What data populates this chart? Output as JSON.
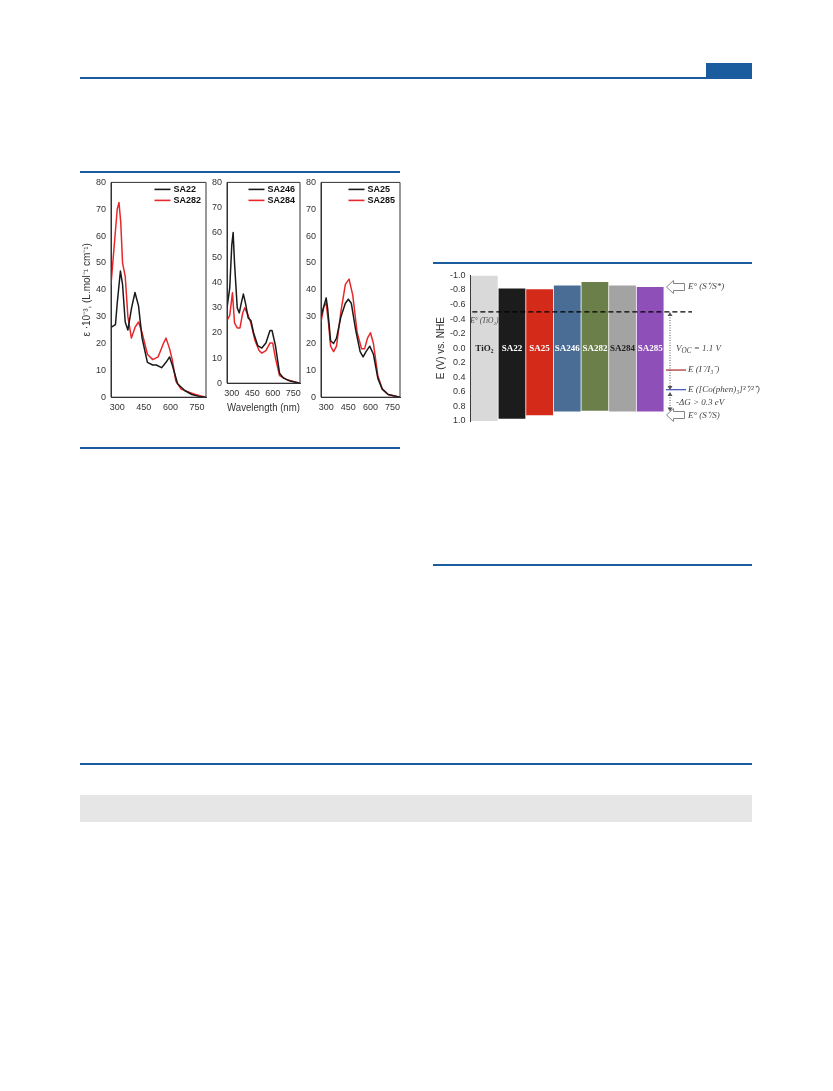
{
  "chart_data": [
    {
      "type": "line",
      "ylabel": "ε ·10⁻³, (L.mol⁻¹ cm⁻¹)",
      "xlim": [
        265,
        800
      ],
      "xticks": [
        300,
        450,
        600,
        750
      ],
      "ylim": [
        0,
        80
      ],
      "yticks": [
        0,
        10,
        20,
        30,
        40,
        50,
        60,
        70,
        80
      ],
      "legend": "top right",
      "marker": "none",
      "line_style": "solid",
      "series": [
        {
          "name": "SA22",
          "color": "#1a1a1a",
          "x": [
            265,
            290,
            300,
            318,
            330,
            345,
            360,
            380,
            400,
            420,
            440,
            470,
            500,
            520,
            550,
            575,
            595,
            610,
            640,
            680,
            720,
            760,
            800
          ],
          "values": [
            26,
            27,
            35,
            47,
            42,
            28,
            25,
            33,
            39,
            34,
            22,
            13,
            12,
            12,
            11,
            13,
            15,
            12,
            5,
            2.5,
            1,
            0.3,
            0
          ]
        },
        {
          "name": "SA282",
          "color": "#e8272b",
          "x": [
            265,
            285,
            300,
            310,
            320,
            330,
            345,
            360,
            380,
            400,
            420,
            440,
            470,
            500,
            530,
            560,
            575,
            595,
            610,
            630,
            660,
            700,
            740,
            800
          ],
          "values": [
            42,
            58,
            70,
            72.5,
            65,
            50,
            45,
            30,
            22,
            26,
            28,
            24,
            16,
            14,
            15,
            20,
            22,
            18,
            14,
            6,
            3,
            2,
            1,
            0
          ]
        }
      ]
    },
    {
      "type": "line",
      "xlabel": "Wavelength (nm)",
      "xlim": [
        265,
        800
      ],
      "xticks": [
        300,
        450,
        600,
        750
      ],
      "ylim": [
        0,
        80
      ],
      "yticks": [
        0,
        10,
        20,
        30,
        40,
        50,
        60,
        70,
        80
      ],
      "legend": "top right",
      "marker": "none",
      "line_style": "solid",
      "series": [
        {
          "name": "SA246",
          "color": "#1a1a1a",
          "x": [
            265,
            285,
            300,
            310,
            320,
            340,
            355,
            370,
            385,
            400,
            420,
            440,
            460,
            490,
            520,
            550,
            580,
            595,
            620,
            650,
            680,
            720,
            800
          ],
          "values": [
            30,
            38,
            55,
            60,
            48,
            30,
            28,
            32,
            35.5,
            32,
            26,
            25,
            20,
            15,
            14,
            16,
            21,
            21,
            15,
            4,
            2,
            1,
            0
          ]
        },
        {
          "name": "SA284",
          "color": "#e8272b",
          "x": [
            265,
            285,
            305,
            320,
            340,
            360,
            380,
            395,
            420,
            440,
            470,
            500,
            520,
            550,
            580,
            600,
            620,
            650,
            700,
            800
          ],
          "values": [
            25,
            27,
            36,
            24,
            22,
            22,
            28,
            30,
            27,
            24,
            17,
            13,
            12,
            13,
            16,
            16,
            10,
            3,
            1.5,
            0
          ]
        }
      ]
    },
    {
      "type": "line",
      "xlim": [
        265,
        800
      ],
      "xticks": [
        300,
        450,
        600,
        750
      ],
      "ylim": [
        0,
        80
      ],
      "yticks": [
        0,
        10,
        20,
        30,
        40,
        50,
        60,
        70,
        80
      ],
      "legend": "top right",
      "marker": "none",
      "line_style": "solid",
      "series": [
        {
          "name": "SA25",
          "color": "#1a1a1a",
          "x": [
            265,
            285,
            300,
            310,
            330,
            350,
            370,
            400,
            430,
            450,
            470,
            500,
            530,
            550,
            570,
            595,
            620,
            650,
            680,
            720,
            800
          ],
          "values": [
            30,
            34,
            37,
            33,
            21,
            20,
            22,
            30,
            35,
            36.5,
            35,
            25,
            17,
            15,
            17,
            19,
            16,
            7,
            3,
            1,
            0
          ]
        },
        {
          "name": "SA285",
          "color": "#e8272b",
          "x": [
            265,
            285,
            300,
            315,
            330,
            350,
            370,
            400,
            430,
            455,
            480,
            510,
            540,
            560,
            580,
            600,
            620,
            650,
            680,
            720,
            800
          ],
          "values": [
            28,
            34,
            35,
            28,
            19,
            17,
            19,
            32,
            42,
            44,
            38,
            24,
            18,
            18,
            22,
            24,
            20,
            8,
            3,
            1,
            0
          ]
        }
      ]
    },
    {
      "type": "bar",
      "ylabel": "E (V) vs. NHE",
      "categories": [
        "TiO₂",
        "SA22",
        "SA25",
        "SA246",
        "SA282",
        "SA284",
        "SA285"
      ],
      "base": [
        -1.0,
        -0.82,
        -0.81,
        -0.86,
        -0.91,
        -0.86,
        -0.84
      ],
      "values": [
        2.0,
        1.79,
        1.73,
        1.73,
        1.77,
        1.73,
        1.71
      ],
      "colors": [
        "#d9d9d9",
        "#1c1c1c",
        "#d42a1a",
        "#4a6d96",
        "#6b7f4a",
        "#a3a3a3",
        "#8e4fb8"
      ],
      "ylim": [
        1.0,
        -1.0
      ],
      "yticks": [
        {
          "value": -1.0,
          "label": "-1.0"
        },
        {
          "value": -0.8,
          "label": "-0.8"
        },
        {
          "value": -0.6,
          "label": "-0.6"
        },
        {
          "value": -0.4,
          "label": "-0.4"
        },
        {
          "value": -0.2,
          "label": "-0.2"
        },
        {
          "value": 0,
          "label": "0.0"
        },
        {
          "value": 0.2,
          "label": "0.2"
        },
        {
          "value": 0.4,
          "label": "0.4"
        },
        {
          "value": 0.6,
          "label": "0.6"
        },
        {
          "value": 0.8,
          "label": "0.8"
        },
        {
          "value": 1.0,
          "label": "1.0"
        }
      ],
      "ref_lines": [
        {
          "axis": "y",
          "value": -0.5,
          "label": "E° (TiO₂)",
          "color": "#000000",
          "line_style": "dashed"
        },
        {
          "axis": "y",
          "value": 0.3,
          "label": "E (I⁻/I₃⁻)",
          "color": "#a52a2a"
        },
        {
          "axis": "y",
          "value": 0.57,
          "label": "E ([Co(phen)₃]³⁺/²⁺)",
          "color": "#3f4fbf"
        }
      ],
      "annotations": [
        "E° (S⁺/S*)",
        "V$_{OC}$ = 1.1 V",
        "-ΔG > 0.3 eV",
        "E° (S⁺/S)"
      ]
    }
  ]
}
